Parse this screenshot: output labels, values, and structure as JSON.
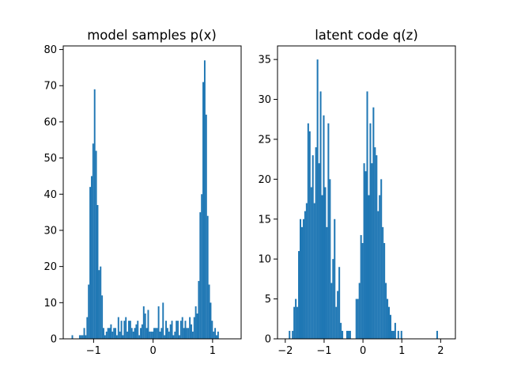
{
  "colors": {
    "bar": "#1f77b4",
    "axis": "#000000",
    "background": "#ffffff"
  },
  "chart_data": [
    {
      "type": "bar",
      "title": "model samples p(x)",
      "xlabel": "",
      "ylabel": "",
      "xlim": [
        -1.51,
        1.48
      ],
      "ylim": [
        0,
        81
      ],
      "xticks": [
        -1,
        0,
        1
      ],
      "xtick_labels": [
        "−1",
        "0",
        "1"
      ],
      "yticks": [
        0,
        10,
        20,
        30,
        40,
        50,
        60,
        70,
        80
      ],
      "ytick_labels": [
        "0",
        "10",
        "20",
        "30",
        "40",
        "50",
        "60",
        "70",
        "80"
      ],
      "grid": false,
      "legend": "none",
      "bin_start": -1.37,
      "bin_width": 0.025,
      "values": [
        1,
        0,
        0,
        0,
        0,
        1,
        1,
        1,
        3,
        1,
        6,
        15,
        42,
        45,
        54,
        69,
        52,
        37,
        19,
        20,
        12,
        3,
        1,
        2,
        3,
        3,
        4,
        2,
        3,
        3,
        1,
        6,
        2,
        5,
        1,
        5,
        6,
        2,
        5,
        5,
        3,
        2,
        3,
        4,
        5,
        1,
        3,
        4,
        9,
        7,
        3,
        8,
        2,
        2,
        2,
        3,
        3,
        3,
        9,
        2,
        3,
        10,
        1,
        5,
        3,
        2,
        4,
        5,
        1,
        2,
        5,
        5,
        1,
        5,
        6,
        3,
        5,
        3,
        3,
        6,
        4,
        2,
        6,
        9,
        7,
        16,
        35,
        40,
        71,
        77,
        62,
        34,
        15,
        10,
        5,
        2,
        3,
        1,
        2,
        0
      ],
      "n_bins": 100
    },
    {
      "type": "bar",
      "title": "latent code q(z)",
      "xlabel": "",
      "ylabel": "",
      "xlim": [
        -2.2,
        2.38
      ],
      "ylim": [
        0,
        36.7
      ],
      "xticks": [
        -2,
        -1,
        0,
        1,
        2
      ],
      "xtick_labels": [
        "−2",
        "−1",
        "0",
        "1",
        "2"
      ],
      "yticks": [
        0,
        5,
        10,
        15,
        20,
        25,
        30,
        35
      ],
      "ytick_labels": [
        "0",
        "5",
        "10",
        "15",
        "20",
        "25",
        "30",
        "35"
      ],
      "grid": false,
      "legend": "none",
      "bin_start": -1.95,
      "bin_width": 0.04,
      "values": [
        0,
        1,
        0,
        1,
        4,
        5,
        4,
        11,
        15,
        14,
        15,
        16,
        17,
        27,
        26,
        19,
        23,
        17,
        24,
        35,
        22,
        31,
        18,
        28,
        19,
        14,
        27,
        20,
        7,
        10,
        15,
        4,
        6,
        9,
        2,
        1,
        0,
        0,
        1,
        1,
        1,
        0,
        0,
        0,
        5,
        5,
        7,
        13,
        12,
        22,
        21,
        31,
        18,
        27,
        22,
        29,
        24,
        23,
        16,
        18,
        20,
        14,
        12,
        7,
        5,
        4,
        3,
        1,
        1,
        2,
        0,
        1,
        0,
        1,
        0,
        0,
        0,
        0,
        0,
        0,
        0,
        0,
        0,
        0,
        0,
        0,
        0,
        0,
        0,
        0,
        0,
        0,
        0,
        0,
        0,
        0,
        1,
        0,
        0,
        0
      ],
      "n_bins": 100
    }
  ]
}
